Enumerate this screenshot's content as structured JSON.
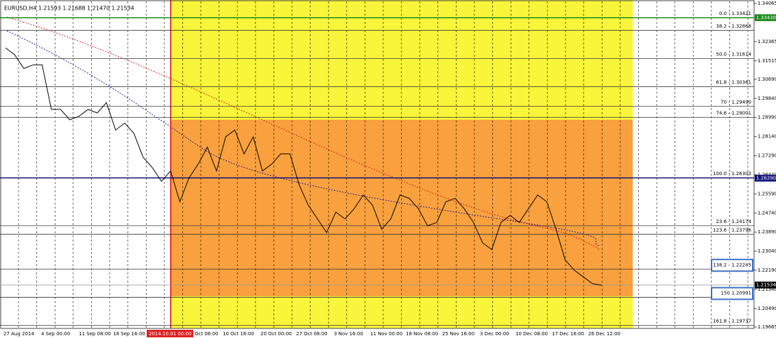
{
  "header": "EURUSD,H4  1.21593 1.21688 1.21470 1.21534",
  "price_axis": [
    "1.34065",
    "1.32365",
    "1.31515",
    "1.30690",
    "1.29840",
    "1.28990",
    "1.28140",
    "1.27290",
    "1.26440",
    "1.25590",
    "1.24740",
    "1.23890",
    "1.23040",
    "1.22190",
    "1.21340",
    "1.20490",
    "1.19665"
  ],
  "price_tags": [
    {
      "text": "1.33430",
      "color": "#1a8a1a"
    },
    {
      "text": "1.26290",
      "color": "#10107a"
    },
    {
      "text": "1.21534",
      "color": "#000000"
    }
  ],
  "fib_levels": [
    "0.0 - 1.33421",
    "38.2 - 1.32868",
    "50.0 - 1.31614",
    "61.8 - 1.30361",
    "70 - 1.29490",
    "74.6 - 1.29001",
    "100.0 - 1.26303",
    "23.6 - 1.24174",
    "123.6 - 1.23796",
    "138.2 - 1.22245",
    "150 1.20991",
    "161.8 - 1.19737"
  ],
  "time_axis": [
    "27 Aug 2014",
    "4 Sep 00:00",
    "11 Sep 08:00",
    "18 Sep 16:00",
    "2014.10.01 00:00",
    "Oct 08:00",
    "10 Oct 16:00",
    "20 Oct 00:00",
    "27 Oct 08:00",
    "3 Nov 16:00",
    "11 Nov 00:00",
    "18 Nov 08:00",
    "25 Nov 16:00",
    "3 Dec 00:00",
    "10 Dec 08:00",
    "17 Dec 16:00",
    "26 Dec 12:00"
  ],
  "price": {
    "values": [
      1.3209,
      1.3178,
      1.3117,
      1.3133,
      1.3133,
      1.2935,
      1.2935,
      1.2889,
      1.2904,
      1.2935,
      1.2919,
      1.2965,
      1.2843,
      1.2874,
      1.2828,
      1.2722,
      1.2676,
      1.2615,
      1.2661,
      1.2524,
      1.263,
      1.2691,
      1.2767,
      1.2661,
      1.2813,
      1.2843,
      1.2737,
      1.2813,
      1.2661,
      1.2691,
      1.2737,
      1.2737,
      1.26,
      1.2509,
      1.2448,
      1.2387,
      1.2478,
      1.2448,
      1.2493,
      1.2554,
      1.2509,
      1.2402,
      1.2448,
      1.2554,
      1.2539,
      1.2493,
      1.2417,
      1.2432,
      1.2524,
      1.2539,
      1.2493,
      1.2432,
      1.2341,
      1.2311,
      1.2432,
      1.2463,
      1.2432,
      1.2493,
      1.2554,
      1.2524,
      1.2402,
      1.2265,
      1.2219,
      1.2189,
      1.2159,
      1.2153
    ]
  }
}
